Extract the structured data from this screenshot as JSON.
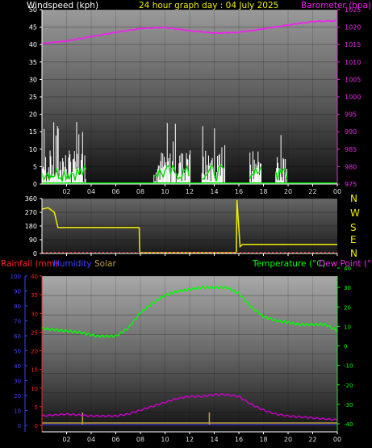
{
  "header": {
    "wind_title": "Windspeed (kph)",
    "period_title": "24 hour graph day : 04 July 2025",
    "baro_title": "Barometer (hpa)"
  },
  "compass": [
    "N",
    "W",
    "S",
    "E",
    "N"
  ],
  "bottom_legend": {
    "rain": "Rainfall (mm)",
    "humidity": "Humidity",
    "solar": "Solar",
    "temperature": "Temperature (°C)",
    "dewpoint": "Dew Point (°C)"
  },
  "colors": {
    "wind": "#ffffff",
    "gust_avg": "#00dd00",
    "barometer": "#ee22ee",
    "direction": "#eeee00",
    "rain": "#ff2020",
    "humidity": "#4040ff",
    "solar": "#c0a040",
    "temperature": "#00ff00",
    "dewpoint": "#cc00cc"
  },
  "chart_data": [
    {
      "type": "line",
      "name": "wind-baro",
      "x_ticks": [
        "02",
        "04",
        "06",
        "08",
        "10",
        "12",
        "14",
        "16",
        "18",
        "20",
        "22",
        "00"
      ],
      "left_ticks": [
        "0",
        "5",
        "10",
        "15",
        "20",
        "25",
        "30",
        "35",
        "40",
        "45",
        "50"
      ],
      "right_ticks": [
        "975",
        "980",
        "985",
        "990",
        "995",
        "1000",
        "1005",
        "1010",
        "1015",
        "1020",
        "1025"
      ],
      "ylim_left": [
        0,
        50
      ],
      "ylim_right": [
        975,
        1025
      ],
      "wind_spans": [
        [
          0.0,
          3.6
        ],
        [
          9.1,
          12.1
        ],
        [
          13.0,
          14.9
        ],
        [
          16.9,
          17.8
        ],
        [
          19.0,
          19.9
        ]
      ],
      "barometer": {
        "hours": [
          0,
          2,
          4,
          6,
          8,
          10,
          12,
          14,
          16,
          18,
          20,
          22,
          24
        ],
        "values": [
          1015.3,
          1016.0,
          1017.3,
          1018.5,
          1019.6,
          1019.9,
          1019.0,
          1018.3,
          1018.5,
          1019.5,
          1020.6,
          1021.6,
          1021.8
        ]
      }
    },
    {
      "type": "line",
      "name": "wind-direction",
      "left_ticks": [
        "0",
        "90",
        "180",
        "270",
        "360"
      ],
      "ylim": [
        0,
        360
      ],
      "hours": [
        0,
        0.5,
        1.0,
        1.3,
        7.9,
        7.95,
        9.5,
        15.8,
        15.85,
        16.1,
        16.3,
        24
      ],
      "values": [
        290,
        300,
        270,
        170,
        170,
        5,
        5,
        5,
        350,
        45,
        60,
        60
      ]
    },
    {
      "type": "line",
      "name": "temp-hum-rain",
      "left_ticks": [
        "0",
        "10",
        "20",
        "30",
        "40",
        "50",
        "60",
        "70",
        "80",
        "90",
        "100"
      ],
      "rain_ticks": [
        "0",
        "5",
        "10",
        "15",
        "20",
        "25",
        "30",
        "35",
        "40"
      ],
      "right_ticks": [
        "-40",
        "-30",
        "-20",
        "-10",
        "0",
        "10",
        "20",
        "30",
        "40"
      ],
      "temp_ylim": [
        -40,
        40
      ],
      "temperature": {
        "hours": [
          0,
          1.5,
          3,
          4.5,
          6,
          7,
          8,
          9,
          10,
          11,
          12,
          13,
          14,
          15,
          16,
          17,
          18,
          19,
          20,
          21,
          22,
          23,
          24
        ],
        "values": [
          9,
          8,
          7,
          5,
          5,
          9,
          17,
          22,
          26,
          28,
          29,
          30,
          30,
          30,
          27,
          20,
          15,
          13,
          12,
          11,
          11,
          11,
          8
        ]
      },
      "dewpoint": {
        "hours": [
          0,
          2,
          4,
          6,
          7,
          8,
          9,
          10,
          11,
          12,
          13,
          14,
          15,
          16,
          17,
          18,
          19,
          20,
          22,
          24
        ],
        "values": [
          -36,
          -35,
          -36,
          -36,
          -35,
          -33,
          -31,
          -29,
          -27,
          -26,
          -26,
          -25,
          -25,
          -26,
          -30,
          -33,
          -35,
          -36,
          -37,
          -38
        ]
      },
      "rain_hours": [
        3.3,
        13.6
      ],
      "rain_values": [
        3.0,
        3.0
      ]
    }
  ]
}
